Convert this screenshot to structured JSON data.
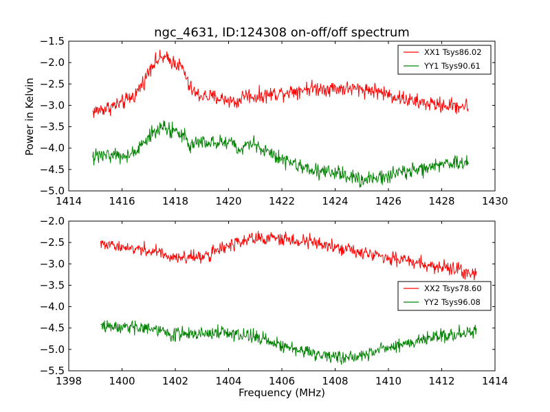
{
  "chart_data": [
    {
      "type": "line",
      "title": "ngc_4631, ID:124308 on-off/off spectrum",
      "xlabel": "",
      "ylabel": "Power in Kelvin",
      "xlim": [
        1414,
        1430
      ],
      "ylim": [
        -5.0,
        -1.5
      ],
      "xticks": [
        1414,
        1416,
        1418,
        1420,
        1422,
        1424,
        1426,
        1428,
        1430
      ],
      "yticks": [
        -5.0,
        -4.5,
        -4.0,
        -3.5,
        -3.0,
        -2.5,
        -2.0,
        -1.5
      ],
      "xtick_labels": [
        "1414",
        "1416",
        "1418",
        "1420",
        "1422",
        "1424",
        "1426",
        "1428",
        "1430"
      ],
      "ytick_labels": [
        "−5.0",
        "−4.5",
        "−4.0",
        "−3.5",
        "−3.0",
        "−2.5",
        "−2.0",
        "−1.5"
      ],
      "grid": false,
      "legend": "top-right",
      "series": [
        {
          "name": "XX1 Tsys86.02",
          "color": "#ff0000",
          "noise": 0.09,
          "x_range": [
            1414.9,
            1429.0
          ],
          "points": [
            [
              1414.9,
              -3.15
            ],
            [
              1415.5,
              -3.05
            ],
            [
              1416.0,
              -2.95
            ],
            [
              1416.5,
              -2.75
            ],
            [
              1416.9,
              -2.35
            ],
            [
              1417.1,
              -2.05
            ],
            [
              1417.5,
              -1.88
            ],
            [
              1418.0,
              -2.0
            ],
            [
              1418.3,
              -2.15
            ],
            [
              1418.5,
              -2.55
            ],
            [
              1418.8,
              -2.75
            ],
            [
              1419.5,
              -2.82
            ],
            [
              1420.0,
              -2.87
            ],
            [
              1420.3,
              -2.95
            ],
            [
              1420.6,
              -2.75
            ],
            [
              1421.0,
              -2.8
            ],
            [
              1421.5,
              -2.75
            ],
            [
              1422.0,
              -2.7
            ],
            [
              1423.0,
              -2.6
            ],
            [
              1424.0,
              -2.6
            ],
            [
              1425.0,
              -2.62
            ],
            [
              1425.5,
              -2.65
            ],
            [
              1426.0,
              -2.75
            ],
            [
              1427.0,
              -2.92
            ],
            [
              1428.0,
              -3.0
            ],
            [
              1429.0,
              -3.02
            ]
          ]
        },
        {
          "name": "YY1 Tsys90.61",
          "color": "#008000",
          "noise": 0.09,
          "x_range": [
            1414.9,
            1429.0
          ],
          "points": [
            [
              1414.9,
              -4.2
            ],
            [
              1415.5,
              -4.15
            ],
            [
              1416.0,
              -4.18
            ],
            [
              1416.5,
              -4.1
            ],
            [
              1416.9,
              -3.85
            ],
            [
              1417.2,
              -3.62
            ],
            [
              1417.5,
              -3.5
            ],
            [
              1418.0,
              -3.6
            ],
            [
              1418.3,
              -3.65
            ],
            [
              1418.5,
              -3.92
            ],
            [
              1418.9,
              -3.85
            ],
            [
              1419.5,
              -3.88
            ],
            [
              1420.2,
              -3.9
            ],
            [
              1420.5,
              -4.1
            ],
            [
              1420.7,
              -3.85
            ],
            [
              1420.9,
              -3.9
            ],
            [
              1421.3,
              -4.05
            ],
            [
              1422.0,
              -4.25
            ],
            [
              1423.0,
              -4.5
            ],
            [
              1424.0,
              -4.6
            ],
            [
              1425.0,
              -4.72
            ],
            [
              1425.5,
              -4.7
            ],
            [
              1426.0,
              -4.65
            ],
            [
              1427.0,
              -4.5
            ],
            [
              1428.0,
              -4.4
            ],
            [
              1429.0,
              -4.35
            ]
          ]
        }
      ]
    },
    {
      "type": "line",
      "title": "",
      "xlabel": "Frequency (MHz)",
      "ylabel": "",
      "xlim": [
        1398,
        1414
      ],
      "ylim": [
        -5.5,
        -2.0
      ],
      "xticks": [
        1398,
        1400,
        1402,
        1404,
        1406,
        1408,
        1410,
        1412,
        1414
      ],
      "yticks": [
        -5.5,
        -5.0,
        -4.5,
        -4.0,
        -3.5,
        -3.0,
        -2.5,
        -2.0
      ],
      "xtick_labels": [
        "1398",
        "1400",
        "1402",
        "1404",
        "1406",
        "1408",
        "1410",
        "1412",
        "1414"
      ],
      "ytick_labels": [
        "−5.5",
        "−5.0",
        "−4.5",
        "−4.0",
        "−3.5",
        "−3.0",
        "−2.5",
        "−2.0"
      ],
      "grid": false,
      "legend": "right",
      "series": [
        {
          "name": "XX2 Tsys78.60",
          "color": "#ff0000",
          "noise": 0.08,
          "x_range": [
            1399.2,
            1413.3
          ],
          "points": [
            [
              1399.2,
              -2.55
            ],
            [
              1400.0,
              -2.6
            ],
            [
              1401.0,
              -2.68
            ],
            [
              1402.0,
              -2.85
            ],
            [
              1403.0,
              -2.82
            ],
            [
              1404.0,
              -2.6
            ],
            [
              1405.0,
              -2.4
            ],
            [
              1406.0,
              -2.42
            ],
            [
              1407.0,
              -2.45
            ],
            [
              1408.0,
              -2.6
            ],
            [
              1409.0,
              -2.75
            ],
            [
              1410.0,
              -2.88
            ],
            [
              1411.0,
              -2.95
            ],
            [
              1412.0,
              -3.08
            ],
            [
              1413.3,
              -3.2
            ]
          ]
        },
        {
          "name": "YY2 Tsys96.08",
          "color": "#008000",
          "noise": 0.08,
          "x_range": [
            1399.2,
            1413.3
          ],
          "points": [
            [
              1399.2,
              -4.45
            ],
            [
              1400.0,
              -4.5
            ],
            [
              1401.0,
              -4.52
            ],
            [
              1402.0,
              -4.65
            ],
            [
              1403.0,
              -4.62
            ],
            [
              1404.0,
              -4.6
            ],
            [
              1405.0,
              -4.72
            ],
            [
              1406.0,
              -4.92
            ],
            [
              1407.0,
              -5.05
            ],
            [
              1408.0,
              -5.2
            ],
            [
              1409.0,
              -5.15
            ],
            [
              1410.0,
              -4.95
            ],
            [
              1411.0,
              -4.8
            ],
            [
              1412.0,
              -4.7
            ],
            [
              1413.3,
              -4.55
            ]
          ]
        }
      ]
    }
  ]
}
